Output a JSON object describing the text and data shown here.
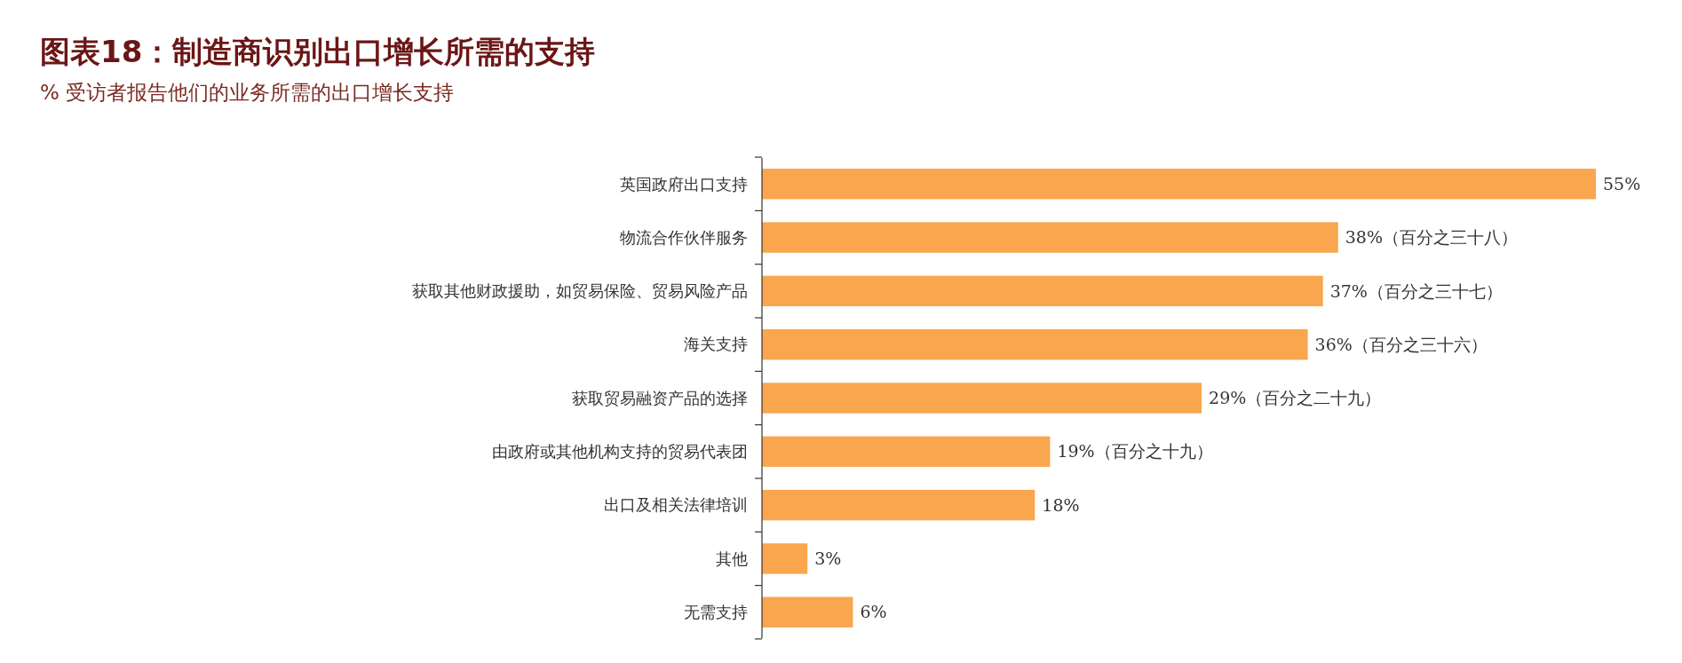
{
  "chart_data": {
    "type": "bar",
    "orientation": "horizontal",
    "title": "图表18：制造商识别出口增长所需的支持",
    "subtitle": "% 受访者报告他们的业务所需的出口增长支持",
    "categories": [
      "英国政府出口支持",
      "物流合作伙伴服务",
      "获取其他财政援助，如贸易保险、贸易风险产品",
      "海关支持",
      "获取贸易融资产品的选择",
      "由政府或其他机构支持的贸易代表团",
      "出口及相关法律培训",
      "其他",
      "无需支持"
    ],
    "values": [
      55,
      38,
      37,
      36,
      29,
      19,
      18,
      3,
      6
    ],
    "value_labels": [
      "55%",
      "38%（百分之三十八）",
      "37%（百分之三十七）",
      "36%（百分之三十六）",
      "29%（百分之二十九）",
      "19%（百分之十九）",
      "18%",
      "3%",
      "6%"
    ],
    "color": "#f9a64f"
  }
}
